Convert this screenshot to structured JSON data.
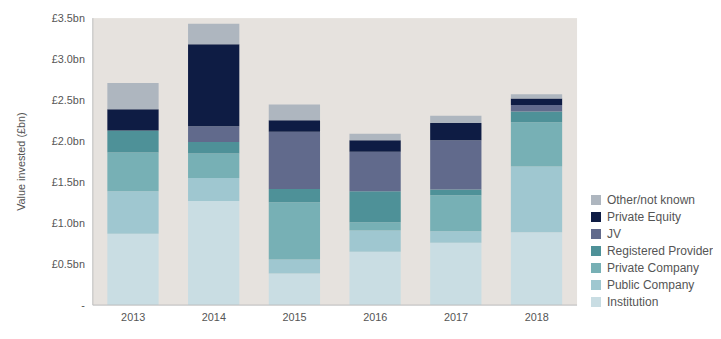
{
  "chart_data": {
    "type": "bar",
    "y_label": "Value invested (£bn)",
    "categories": [
      "2013",
      "2014",
      "2015",
      "2016",
      "2017",
      "2018"
    ],
    "series": [
      {
        "name": "Institution",
        "color": "#c9dde3",
        "values": [
          0.87,
          1.27,
          0.385,
          0.65,
          0.76,
          0.89
        ]
      },
      {
        "name": "Public Company",
        "color": "#9fc7d0",
        "values": [
          0.52,
          0.28,
          0.17,
          0.26,
          0.14,
          0.8
        ]
      },
      {
        "name": "Private Company",
        "color": "#77b0b5",
        "values": [
          0.47,
          0.3,
          0.7,
          0.1,
          0.44,
          0.54
        ]
      },
      {
        "name": "Registered Provider",
        "color": "#4e9198",
        "values": [
          0.27,
          0.14,
          0.16,
          0.38,
          0.07,
          0.13
        ]
      },
      {
        "name": "JV",
        "color": "#616a8c",
        "values": [
          0,
          0.19,
          0.7,
          0.48,
          0.6,
          0.08
        ]
      },
      {
        "name": "Private Equity",
        "color": "#0e1c44",
        "values": [
          0.26,
          1.0,
          0.14,
          0.14,
          0.21,
          0.08
        ]
      },
      {
        "name": "Other/not known",
        "color": "#aeb6bf",
        "values": [
          0.32,
          0.25,
          0.19,
          0.08,
          0.09,
          0.05
        ]
      }
    ],
    "ylim": [
      0,
      3.5
    ],
    "yticks": [
      {
        "value": 0,
        "label": "-"
      },
      {
        "value": 0.5,
        "label": "£0.5bn"
      },
      {
        "value": 1.0,
        "label": "£1.0bn"
      },
      {
        "value": 1.5,
        "label": "£1.5bn"
      },
      {
        "value": 2.0,
        "label": "£2.0bn"
      },
      {
        "value": 2.5,
        "label": "£2.5bn"
      },
      {
        "value": 3.0,
        "label": "£3.0bn"
      },
      {
        "value": 3.5,
        "label": "£3.5bn"
      }
    ],
    "stacked": true,
    "grid": false,
    "legend": "right"
  }
}
